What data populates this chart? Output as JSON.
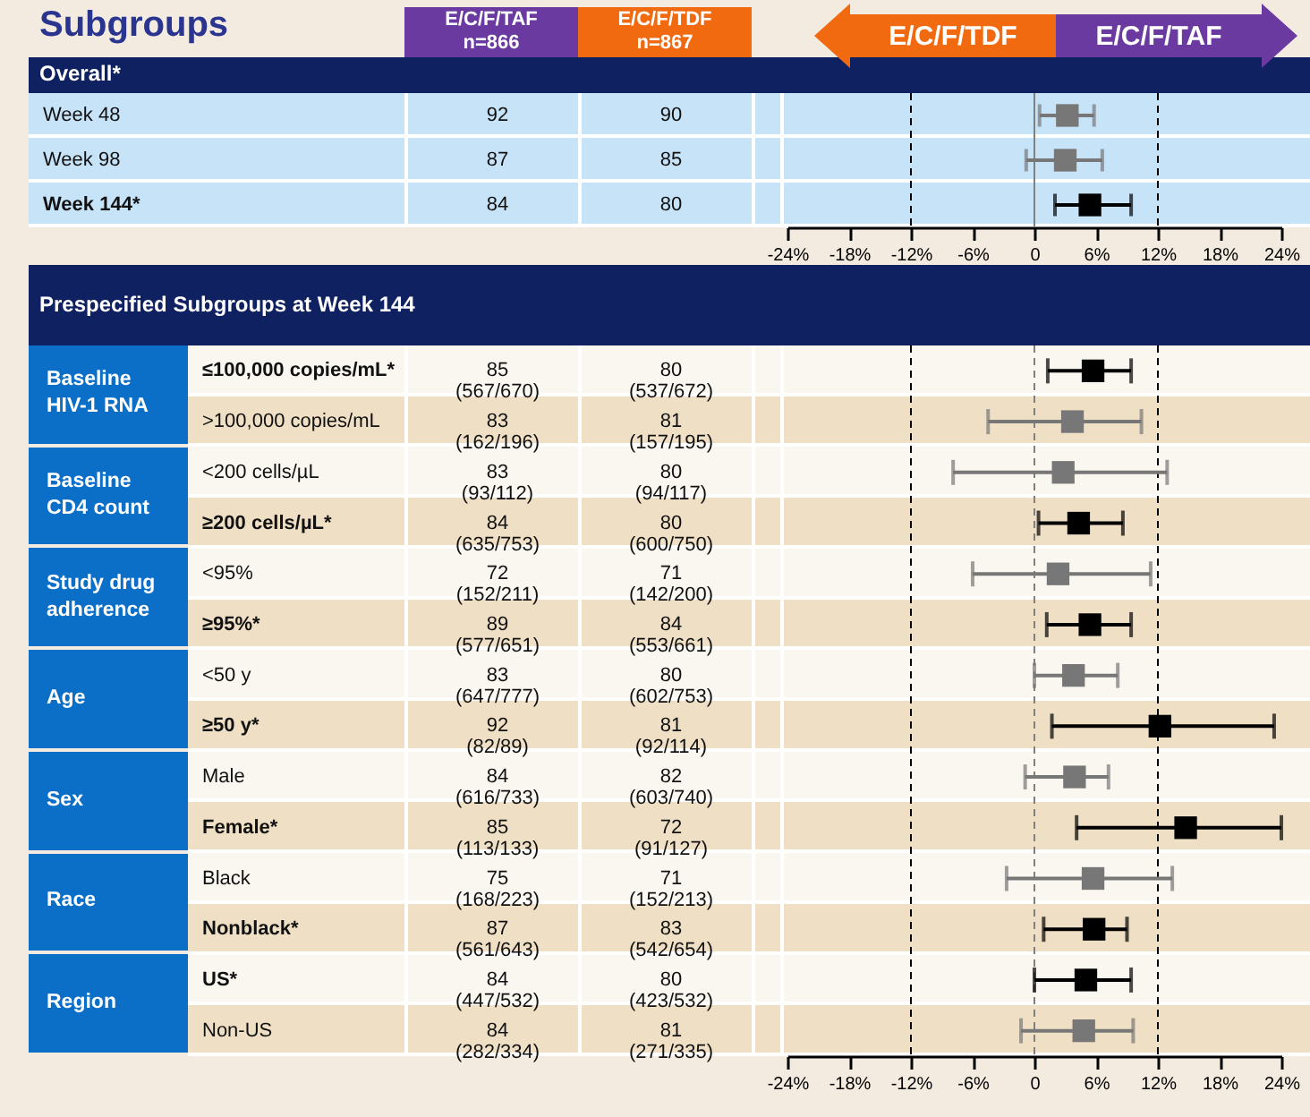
{
  "chart_data": [
    {
      "type": "other",
      "title": "Subgroups",
      "subtitle": "Overall*",
      "categories": [
        "Week 48",
        "Week 98",
        "Week 144*"
      ],
      "data_labels": true,
      "series": [
        {
          "name": "E/C/F/TAF n=866",
          "values": [
            92,
            87,
            84
          ]
        },
        {
          "name": "E/C/F/TDF n=867",
          "values": [
            90,
            85,
            80
          ]
        }
      ]
    },
    {
      "type": "scatter",
      "orientation": "horizontal",
      "marker": "square",
      "tick_labels": "x",
      "categories": [
        null,
        null,
        null
      ],
      "series": [
        {
          "values": [
            3.2,
            3.0,
            5.4
          ],
          "errors": [
            [
              0.5,
              5.8
            ],
            [
              -0.8,
              6.6
            ],
            [
              2.0,
              9.4
            ]
          ],
          "colors": [
            "#777777",
            "#777777",
            "#000000"
          ]
        }
      ],
      "xlim": [
        -24,
        24
      ],
      "xticks": [
        {
          "value": -24,
          "label": "-24%"
        },
        {
          "value": -18,
          "label": "-18%"
        },
        {
          "value": -12,
          "label": "-12%"
        },
        {
          "value": -6,
          "label": "-6%"
        },
        0,
        {
          "value": 6,
          "label": "6%"
        },
        {
          "value": 12,
          "label": "12%"
        },
        {
          "value": 18,
          "label": "18%"
        },
        {
          "value": 24,
          "label": "24%"
        }
      ],
      "ref_lines": [
        {
          "axis": "x",
          "value": -12,
          "color": "#000000",
          "line_style": "dashed"
        },
        {
          "axis": "x",
          "value": 12,
          "color": "#000000",
          "line_style": "dashed"
        },
        {
          "axis": "x",
          "value": 0,
          "color": "#808080",
          "line_style": "solid"
        }
      ],
      "annotations": [
        "E/C/F/TDF",
        "E/C/F/TAF"
      ]
    },
    {
      "type": "other",
      "title": "Prespecified Subgroups at Week 144",
      "categories": [
        "≤100,000 copies/mL*",
        ">100,000 copies/mL",
        "<200 cells/µL",
        "≥200 cells/µL*",
        "<95%",
        "≥95%*",
        "<50 y",
        "≥50 y*",
        "Male",
        "Female*",
        "Black",
        "Nonblack*",
        "US*",
        "Non-US"
      ],
      "data_labels": true,
      "series": [
        {
          "color": "#111111",
          "values": [
            85,
            83,
            83,
            84,
            72,
            89,
            83,
            92,
            84,
            85,
            75,
            87,
            84,
            84
          ],
          "value_labels": [
            "85\n(567/670)",
            "83\n(162/196)",
            "83\n(93/112)",
            "84\n(635/753)",
            "72\n(152/211)",
            "89\n(577/651)",
            "83\n(647/777)",
            "92\n(82/89)",
            "84\n(616/733)",
            "85\n(113/133)",
            "75\n(168/223)",
            "87\n(561/643)",
            "84\n(447/532)",
            "84\n(282/334)"
          ]
        },
        {
          "color": "#111111",
          "values": [
            80,
            81,
            80,
            80,
            71,
            84,
            80,
            81,
            82,
            72,
            71,
            83,
            80,
            81
          ],
          "value_labels": [
            "80\n(537/672)",
            "81\n(157/195)",
            "80\n(94/117)",
            "80\n(600/750)",
            "71\n(142/200)",
            "84\n(553/661)",
            "80\n(602/753)",
            "81\n(92/114)",
            "82\n(603/740)",
            "72\n(91/127)",
            "71\n(152/213)",
            "83\n(542/654)",
            "80\n(423/532)",
            "81\n(271/335)"
          ]
        }
      ],
      "annotations": [
        "Baseline HIV-1 RNA",
        "Baseline CD4 count",
        "Study drug adherence",
        "Age",
        "Sex",
        "Race",
        "Region"
      ]
    },
    {
      "type": "scatter",
      "orientation": "horizontal",
      "marker": "square",
      "tick_labels": "x",
      "categories": [
        null,
        null,
        null,
        null,
        null,
        null,
        null,
        null,
        null,
        null,
        null,
        null,
        null,
        null
      ],
      "series": [
        {
          "values": [
            5.7,
            3.7,
            2.8,
            4.3,
            2.3,
            5.4,
            3.8,
            12.2,
            3.9,
            14.7,
            5.7,
            5.8,
            5.0,
            4.8
          ],
          "errors": [
            [
              1.3,
              9.4
            ],
            [
              -4.5,
              10.4
            ],
            [
              -7.9,
              12.9
            ],
            [
              0.4,
              8.6
            ],
            [
              -6.0,
              11.3
            ],
            [
              1.2,
              9.4
            ],
            [
              0.0,
              8.1
            ],
            [
              1.7,
              23.3
            ],
            [
              -0.9,
              7.2
            ],
            [
              4.1,
              24.0
            ],
            [
              -2.7,
              13.4
            ],
            [
              0.9,
              9.0
            ],
            [
              0.0,
              9.4
            ],
            [
              -1.3,
              9.6
            ]
          ],
          "colors": [
            "#000000",
            "#777777",
            "#777777",
            "#000000",
            "#777777",
            "#000000",
            "#777777",
            "#000000",
            "#777777",
            "#000000",
            "#777777",
            "#000000",
            "#000000",
            "#777777"
          ]
        }
      ],
      "xlim": [
        -24,
        24
      ],
      "xticks": [
        {
          "value": -24,
          "label": "-24%"
        },
        {
          "value": -18,
          "label": "-18%"
        },
        {
          "value": -12,
          "label": "-12%"
        },
        {
          "value": -6,
          "label": "-6%"
        },
        0,
        {
          "value": 6,
          "label": "6%"
        },
        {
          "value": 12,
          "label": "12%"
        },
        {
          "value": 18,
          "label": "18%"
        },
        {
          "value": 24,
          "label": "24%"
        }
      ],
      "ref_lines": [
        {
          "axis": "x",
          "value": -12,
          "color": "#000000",
          "line_style": "dashed"
        },
        {
          "axis": "x",
          "value": 12,
          "color": "#000000",
          "line_style": "dashed"
        },
        {
          "axis": "x",
          "value": 0,
          "color": "#808080",
          "line_style": "dashed"
        }
      ]
    }
  ]
}
